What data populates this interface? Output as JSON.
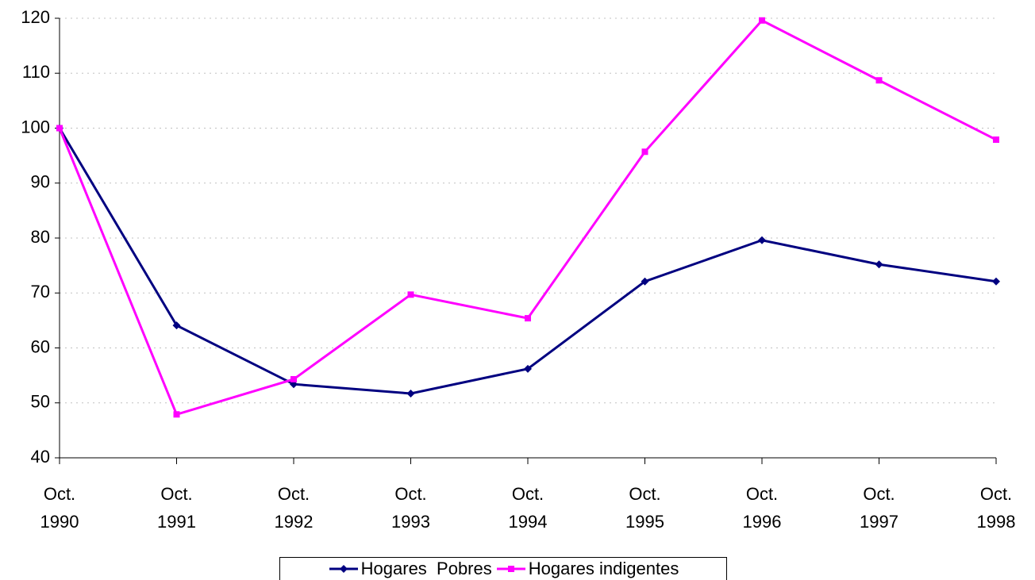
{
  "chart_data": {
    "type": "line",
    "categories": [
      "Oct. 1990",
      "Oct. 1991",
      "Oct. 1992",
      "Oct. 1993",
      "Oct. 1994",
      "Oct. 1995",
      "Oct. 1996",
      "Oct. 1997",
      "Oct. 1998"
    ],
    "series": [
      {
        "name": "Hogares  Pobres",
        "color": "#000080",
        "marker": "diamond",
        "values": [
          100,
          64.1,
          53.4,
          51.7,
          56.2,
          72.1,
          79.6,
          75.2,
          72.1
        ]
      },
      {
        "name": "Hogares indigentes",
        "color": "#ff00ff",
        "marker": "square",
        "values": [
          100,
          47.9,
          54.3,
          69.7,
          65.4,
          95.7,
          119.6,
          108.7,
          97.9
        ]
      }
    ],
    "ylim": [
      40,
      120
    ],
    "yticks": [
      40,
      50,
      60,
      70,
      80,
      90,
      100,
      110,
      120
    ],
    "grid": true,
    "legend": "bottom"
  }
}
